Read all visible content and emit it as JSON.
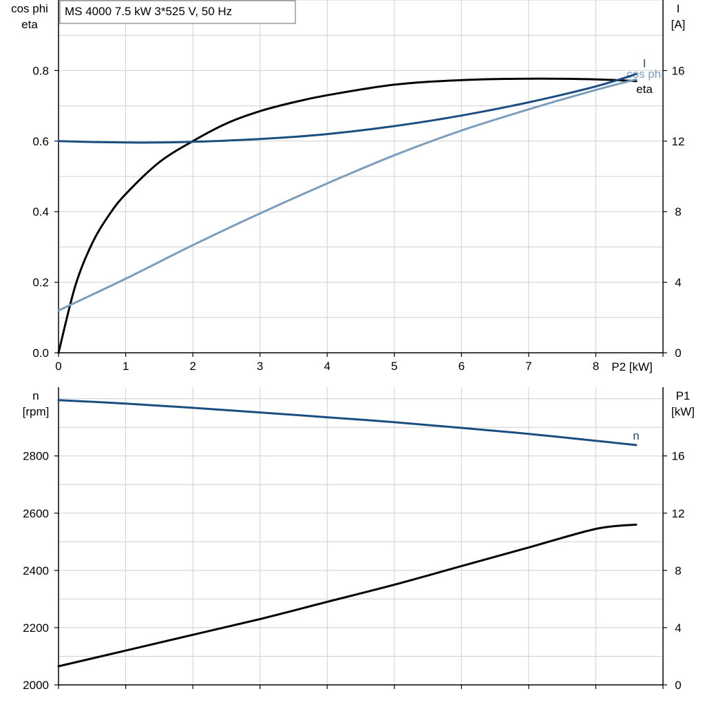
{
  "title": "MS 4000   7.5 kW   3*525 V, 50 Hz",
  "chart_data": [
    {
      "type": "line",
      "name": "top",
      "xlabel": "P2 [kW]",
      "xlim": [
        0,
        9
      ],
      "x_ticks": [
        0,
        1,
        2,
        3,
        4,
        5,
        6,
        7,
        8
      ],
      "left_axis": {
        "label_lines": [
          "cos phi",
          "eta"
        ],
        "ylim": [
          0,
          1.0
        ],
        "ticks": [
          0.0,
          0.2,
          0.4,
          0.6,
          0.8
        ],
        "tick_labels": [
          "0.0",
          "0.2",
          "0.4",
          "0.6",
          "0.8"
        ]
      },
      "right_axis": {
        "label_lines": [
          "I",
          "[A]"
        ],
        "ylim": [
          0,
          20
        ],
        "ticks": [
          0,
          4,
          8,
          12,
          16
        ],
        "tick_labels": [
          "0",
          "4",
          "8",
          "12",
          "16"
        ]
      },
      "grid": true,
      "series": [
        {
          "name": "eta",
          "axis": "left",
          "color": "#000000",
          "x": [
            0,
            0.25,
            0.5,
            0.75,
            1,
            1.5,
            2,
            2.5,
            3,
            3.5,
            4,
            5,
            6,
            7,
            8,
            8.6
          ],
          "y": [
            0,
            0.19,
            0.31,
            0.39,
            0.45,
            0.54,
            0.6,
            0.65,
            0.685,
            0.71,
            0.73,
            0.76,
            0.773,
            0.777,
            0.775,
            0.77
          ]
        },
        {
          "name": "cos phi",
          "axis": "left",
          "color": "#7b9dbd",
          "x": [
            0,
            1,
            2,
            3,
            4,
            5,
            6,
            7,
            8,
            8.6
          ],
          "y": [
            0.12,
            0.21,
            0.305,
            0.395,
            0.48,
            0.56,
            0.63,
            0.69,
            0.745,
            0.775
          ]
        },
        {
          "name": "I",
          "axis": "right",
          "color": "#1a4d80",
          "x": [
            0,
            0.5,
            1,
            1.5,
            2,
            3,
            4,
            5,
            6,
            7,
            8,
            8.6
          ],
          "y": [
            12.0,
            11.95,
            11.92,
            11.92,
            11.96,
            12.12,
            12.4,
            12.85,
            13.45,
            14.2,
            15.1,
            15.8
          ]
        }
      ]
    },
    {
      "type": "line",
      "name": "bottom",
      "xlim": [
        0,
        9
      ],
      "x_ticks": [
        0,
        1,
        2,
        3,
        4,
        5,
        6,
        7,
        8
      ],
      "left_axis": {
        "label_lines": [
          "n",
          "[rpm]"
        ],
        "ylim": [
          2000,
          3040
        ],
        "ticks": [
          2000,
          2200,
          2400,
          2600,
          2800
        ],
        "tick_labels": [
          "2000",
          "2200",
          "2400",
          "2600",
          "2800"
        ]
      },
      "right_axis": {
        "label_lines": [
          "P1",
          "[kW]"
        ],
        "ylim": [
          0,
          20.8
        ],
        "ticks": [
          0,
          4,
          8,
          12,
          16
        ],
        "tick_labels": [
          "0",
          "4",
          "8",
          "12",
          "16"
        ]
      },
      "grid": true,
      "series": [
        {
          "name": "n",
          "axis": "left",
          "color": "#1a4d80",
          "x": [
            0,
            1,
            2,
            3,
            4,
            5,
            6,
            7,
            8,
            8.6
          ],
          "y": [
            2995,
            2983,
            2968,
            2952,
            2935,
            2918,
            2898,
            2877,
            2853,
            2838
          ]
        },
        {
          "name": "P1",
          "axis": "right",
          "color": "#000000",
          "x": [
            0,
            1,
            2,
            3,
            4,
            5,
            6,
            7,
            8,
            8.6
          ],
          "y": [
            1.3,
            2.4,
            3.5,
            4.6,
            5.8,
            7.0,
            8.3,
            9.6,
            10.9,
            11.2
          ]
        }
      ]
    }
  ]
}
